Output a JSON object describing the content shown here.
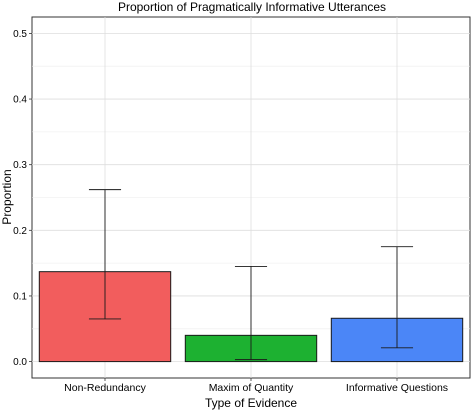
{
  "chart_data": {
    "type": "bar",
    "title": "Proportion of Pragmatically Informative Utterances",
    "xlabel": "Type of Evidence",
    "ylabel": "Proportion",
    "categories": [
      "Non-Redundancy",
      "Maxim of Quantity",
      "Informative Questions"
    ],
    "values": [
      0.137,
      0.04,
      0.066
    ],
    "error_low": [
      0.065,
      0.003,
      0.021
    ],
    "error_high": [
      0.262,
      0.145,
      0.175
    ],
    "colors": [
      "#f25d5d",
      "#1db131",
      "#4b86f7"
    ],
    "ylim": [
      -0.025,
      0.525
    ],
    "yticks": [
      0.0,
      0.1,
      0.2,
      0.3,
      0.4,
      0.5
    ],
    "ytick_labels": [
      "0.0",
      "0.1",
      "0.2",
      "0.3",
      "0.4",
      "0.5"
    ],
    "grid": true,
    "legend": "none"
  }
}
